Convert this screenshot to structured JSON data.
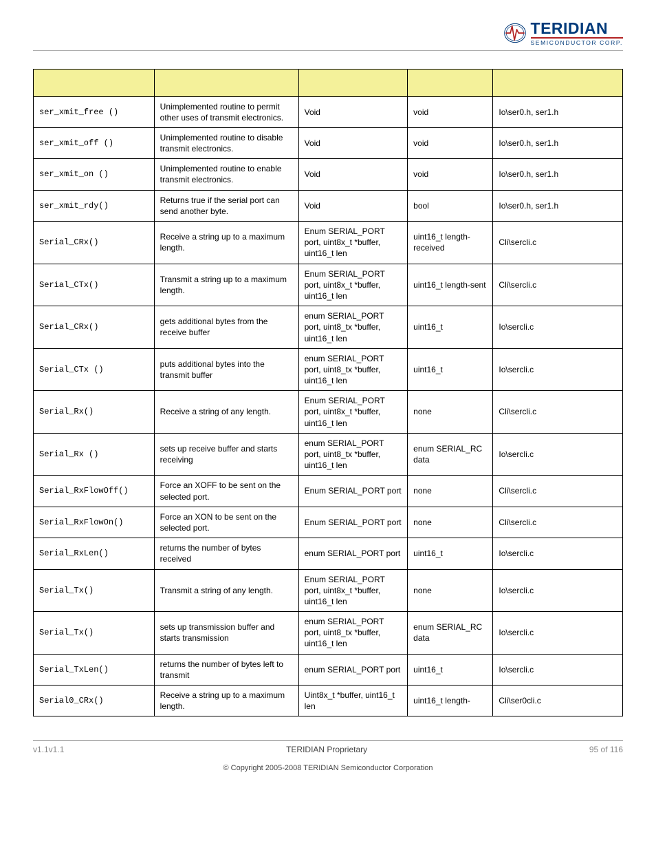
{
  "brand": {
    "name": "TERIDIAN",
    "subtitle": "SEMICONDUCTOR CORP."
  },
  "table": {
    "header_bg": "#f4f19a",
    "border_color": "#000000",
    "font_size_pt": 9,
    "mono_font": "Courier New",
    "columns": [
      "fn",
      "desc",
      "in",
      "out",
      "file"
    ],
    "col_widths_pct": [
      20.5,
      24.5,
      18.5,
      14.5,
      22
    ],
    "rows": [
      {
        "fn": "ser_xmit_free ()",
        "desc": "Unimplemented routine to permit other uses of transmit electronics.",
        "in": "Void",
        "out": "void",
        "file": "Io\\ser0.h, ser1.h"
      },
      {
        "fn": "ser_xmit_off ()",
        "desc": "Unimplemented routine to disable transmit electronics.",
        "in": "Void",
        "out": "void",
        "file": "Io\\ser0.h, ser1.h"
      },
      {
        "fn": "ser_xmit_on ()",
        "desc": "Unimplemented routine to enable transmit electronics.",
        "in": "Void",
        "out": "void",
        "file": "Io\\ser0.h, ser1.h"
      },
      {
        "fn": "ser_xmit_rdy()",
        "desc": "Returns true if the serial port can send another byte.",
        "in": "Void",
        "out": "bool",
        "file": "Io\\ser0.h, ser1.h"
      },
      {
        "fn": "Serial_CRx()",
        "desc": "Receive a string up to a maximum length.",
        "in": "Enum SERIAL_PORT port, uint8x_t *buffer, uint16_t len",
        "out": "uint16_t length-received",
        "file": "Cli\\sercli.c"
      },
      {
        "fn": "Serial_CTx()",
        "desc": "Transmit a string up to a maximum length.",
        "in": "Enum SERIAL_PORT port, uint8x_t *buffer, uint16_t len",
        "out": "uint16_t length-sent",
        "file": "Cli\\sercli.c"
      },
      {
        "fn": "Serial_CRx()",
        "desc": "gets additional bytes from the receive buffer",
        "in": "enum SERIAL_PORT port, uint8_tx *buffer, uint16_t len",
        "out": "uint16_t",
        "file": "Io\\sercli.c"
      },
      {
        "fn": "Serial_CTx ()",
        "desc": "puts additional bytes into the transmit buffer",
        "in": "enum SERIAL_PORT port, uint8_tx *buffer, uint16_t len",
        "out": "uint16_t",
        "file": "Io\\sercli.c"
      },
      {
        "fn": "Serial_Rx()",
        "desc": "Receive a string of any length.",
        "in": "Enum SERIAL_PORT port, uint8x_t *buffer, uint16_t len",
        "out": "none",
        "file": "Cli\\sercli.c"
      },
      {
        "fn": "Serial_Rx ()",
        "desc": "sets up receive buffer and starts receiving",
        "in": "enum SERIAL_PORT port, uint8_tx *buffer, uint16_t len",
        "out": "enum SERIAL_RC data",
        "file": "Io\\sercli.c"
      },
      {
        "fn": "Serial_RxFlowOff()",
        "desc": "Force an XOFF to be sent on the selected port.",
        "in": "Enum SERIAL_PORT port",
        "out": "none",
        "file": "Cli\\sercli.c"
      },
      {
        "fn": "Serial_RxFlowOn()",
        "desc": "Force an XON to be sent on the selected port.",
        "in": "Enum SERIAL_PORT port",
        "out": "none",
        "file": "Cli\\sercli.c"
      },
      {
        "fn": "Serial_RxLen()",
        "desc": "returns the number of bytes received",
        "in": "enum SERIAL_PORT port",
        "out": "uint16_t",
        "file": "Io\\sercli.c"
      },
      {
        "fn": "Serial_Tx()",
        "desc": "Transmit a string of any length.",
        "in": "Enum SERIAL_PORT port, uint8x_t *buffer, uint16_t len",
        "out": "none",
        "file": "Io\\sercli.c"
      },
      {
        "fn": "Serial_Tx()",
        "desc": "sets up transmission buffer and starts transmission",
        "in": "enum SERIAL_PORT port, uint8_tx *buffer, uint16_t len",
        "out": "enum SERIAL_RC data",
        "file": "Io\\sercli.c"
      },
      {
        "fn": "Serial_TxLen()",
        "desc": "returns the number of bytes left to transmit",
        "in": "enum SERIAL_PORT port",
        "out": "uint16_t",
        "file": "Io\\sercli.c"
      },
      {
        "fn": "Serial0_CRx()",
        "desc": "Receive a string up to a maximum length.",
        "in": "Uint8x_t *buffer, uint16_t len",
        "out": "uint16_t length-",
        "file": "Cli\\ser0cli.c"
      }
    ]
  },
  "footer": {
    "left": "v1.1v1.1",
    "center": "TERIDIAN Proprietary",
    "right": "95 of 116",
    "copyright": "© Copyright 2005-2008 TERIDIAN Semiconductor Corporation"
  }
}
